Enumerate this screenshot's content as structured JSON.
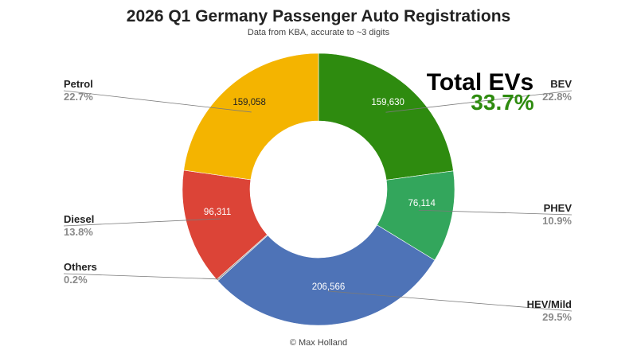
{
  "chart_data": {
    "type": "pie",
    "donut": true,
    "title": "2026 Q1 Germany Passenger Auto Registrations",
    "subtitle": "Data from KBA, accurate to ~3 digits",
    "credit": "© Max Holland",
    "slices": [
      {
        "key": "bev",
        "label": "BEV",
        "value": 159630,
        "value_label": "159,630",
        "percent": "22.8%",
        "color": "#2e8b0f"
      },
      {
        "key": "phev",
        "label": "PHEV",
        "value": 76114,
        "value_label": "76,114",
        "percent": "10.9%",
        "color": "#33a65c"
      },
      {
        "key": "hev",
        "label": "HEV/Mild",
        "value": 206566,
        "value_label": "206,566",
        "percent": "29.5%",
        "color": "#4e73b7"
      },
      {
        "key": "others",
        "label": "Others",
        "value": 1400,
        "value_label": "",
        "percent": "0.2%",
        "color": "#9e9e9e"
      },
      {
        "key": "diesel",
        "label": "Diesel",
        "value": 96311,
        "value_label": "96,311",
        "percent": "13.8%",
        "color": "#dc4437"
      },
      {
        "key": "petrol",
        "label": "Petrol",
        "value": 159058,
        "value_label": "159,058",
        "percent": "22.7%",
        "color": "#f4b400"
      }
    ],
    "annotation": {
      "text": "Total EVs",
      "value": "33.7%",
      "color": "#2e8b0f"
    },
    "legend": "none"
  }
}
